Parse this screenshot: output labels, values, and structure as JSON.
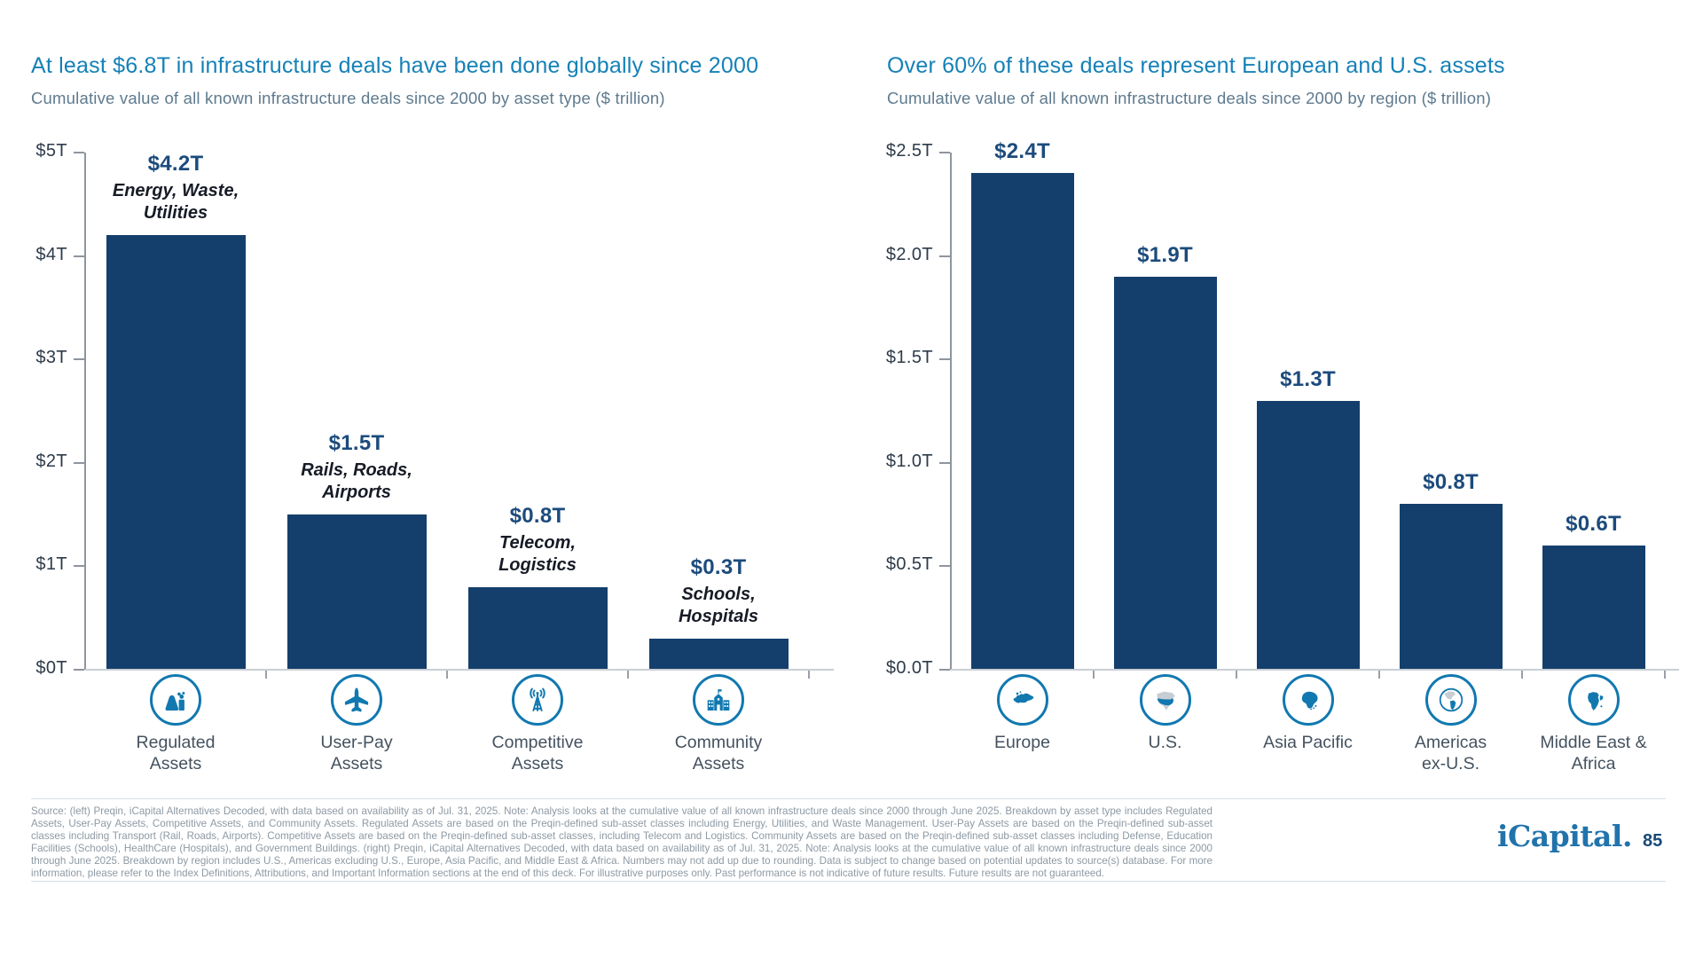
{
  "colors": {
    "bar": "#143F6C",
    "value_label": "#1C4B7C",
    "title_blue": "#1581B7",
    "subtitle_gray": "#5E7A8E",
    "icon_blue": "#1178B0",
    "annotation_dark": "#171B26",
    "footnote_gray": "#8D99A3"
  },
  "chart_data": [
    {
      "type": "bar",
      "title": "At least $6.8T in infrastructure deals have been done globally since 2000",
      "subtitle": "Cumulative value of all known infrastructure deals since 2000 by asset type ($ trillion)",
      "ylim": [
        0,
        5
      ],
      "grid": false,
      "legend": "none",
      "yticks": [
        {
          "label": "$5T",
          "value": 5
        },
        {
          "label": "$4T",
          "value": 4
        },
        {
          "label": "$3T",
          "value": 3
        },
        {
          "label": "$2T",
          "value": 2
        },
        {
          "label": "$1T",
          "value": 1
        },
        {
          "label": "$0T",
          "value": 0
        }
      ],
      "categories": [
        {
          "label": [
            "Regulated",
            "Assets"
          ],
          "icon": "power-plant-icon"
        },
        {
          "label": [
            "User-Pay",
            "Assets"
          ],
          "icon": "airplane-icon"
        },
        {
          "label": [
            "Competitive",
            "Assets"
          ],
          "icon": "radio-tower-icon"
        },
        {
          "label": [
            "Community",
            "Assets"
          ],
          "icon": "school-building-icon"
        }
      ],
      "values": [
        4.2,
        1.5,
        0.8,
        0.3
      ],
      "value_labels": [
        "$4.2T",
        "$1.5T",
        "$0.8T",
        "$0.3T"
      ],
      "annotations": [
        [
          "Energy, Waste,",
          "Utilities"
        ],
        [
          "Rails, Roads,",
          "Airports"
        ],
        [
          "Telecom,",
          "Logistics"
        ],
        [
          "Schools,",
          "Hospitals"
        ]
      ]
    },
    {
      "type": "bar",
      "title": "Over 60% of these deals represent European and U.S. assets",
      "subtitle": "Cumulative value of all known infrastructure deals since 2000 by region ($ trillion)",
      "ylim": [
        0,
        2.5
      ],
      "grid": false,
      "legend": "none",
      "yticks": [
        {
          "label": "$2.5T",
          "value": 2.5
        },
        {
          "label": "$2.0T",
          "value": 2.0
        },
        {
          "label": "$1.5T",
          "value": 1.5
        },
        {
          "label": "$1.0T",
          "value": 1.0
        },
        {
          "label": "$0.5T",
          "value": 0.5
        },
        {
          "label": "$0.0T",
          "value": 0
        }
      ],
      "categories": [
        {
          "label": [
            "Europe"
          ],
          "icon": "europe-map-icon"
        },
        {
          "label": [
            "U.S."
          ],
          "icon": "us-map-icon"
        },
        {
          "label": [
            "Asia Pacific"
          ],
          "icon": "asia-map-icon"
        },
        {
          "label": [
            "Americas",
            "ex-U.S."
          ],
          "icon": "americas-globe-icon"
        },
        {
          "label": [
            "Middle East &",
            "Africa"
          ],
          "icon": "africa-map-icon"
        }
      ],
      "values": [
        2.4,
        1.9,
        1.3,
        0.8,
        0.6
      ],
      "value_labels": [
        "$2.4T",
        "$1.9T",
        "$1.3T",
        "$0.8T",
        "$0.6T"
      ],
      "annotations": [
        [],
        [],
        [],
        [],
        []
      ]
    }
  ],
  "footer": {
    "source_text": "Source: (left) Preqin, iCapital Alternatives Decoded, with data based on availability as of Jul. 31, 2025. Note: Analysis looks at the cumulative value of all known infrastructure deals since 2000 through June 2025. Breakdown by asset type includes Regulated Assets, User-Pay Assets, Competitive Assets, and Community Assets. Regulated Assets are based on the Preqin-defined sub-asset classes including Energy, Utilities, and Waste Management. User-Pay Assets are based on the Preqin-defined sub-asset classes including Transport (Rail, Roads, Airports). Competitive Assets are based on the Preqin-defined sub-asset classes, including Telecom and Logistics. Community Assets are based on the Preqin-defined sub-asset classes including Defense, Education Facilities (Schools), HealthCare (Hospitals), and Government Buildings. (right) Preqin, iCapital Alternatives Decoded, with data based on availability as of Jul. 31, 2025. Note: Analysis looks at the cumulative value of all known infrastructure deals since 2000 through June 2025. Breakdown by region includes U.S., Americas excluding U.S., Europe, Asia Pacific, and Middle East & Africa. Numbers may not add up due to rounding. Data is subject to change based on potential updates to source(s) database. For more information, please refer to the Index Definitions, Attributions, and Important Information sections at the end of this deck. For illustrative purposes only. Past performance is not indicative of future results. Future results are not guaranteed.",
    "logo_text": "iCapital.",
    "page_number": "85"
  }
}
